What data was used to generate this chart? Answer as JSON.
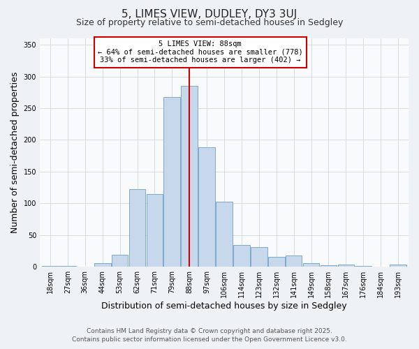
{
  "title": "5, LIMES VIEW, DUDLEY, DY3 3UJ",
  "subtitle": "Size of property relative to semi-detached houses in Sedgley",
  "xlabel": "Distribution of semi-detached houses by size in Sedgley",
  "ylabel": "Number of semi-detached properties",
  "categories": [
    "18sqm",
    "27sqm",
    "36sqm",
    "44sqm",
    "53sqm",
    "62sqm",
    "71sqm",
    "79sqm",
    "88sqm",
    "97sqm",
    "106sqm",
    "114sqm",
    "123sqm",
    "132sqm",
    "141sqm",
    "149sqm",
    "158sqm",
    "167sqm",
    "176sqm",
    "184sqm",
    "193sqm"
  ],
  "values": [
    1,
    1,
    0,
    6,
    19,
    122,
    115,
    268,
    285,
    188,
    103,
    35,
    31,
    16,
    18,
    6,
    3,
    4,
    1,
    0,
    4
  ],
  "bar_color": "#c8d8ec",
  "bar_edge_color": "#7aaac8",
  "vline_x": 8,
  "vline_color": "#cc0000",
  "annotation_title": "5 LIMES VIEW: 88sqm",
  "annotation_line1": "← 64% of semi-detached houses are smaller (778)",
  "annotation_line2": "33% of semi-detached houses are larger (402) →",
  "annotation_box_facecolor": "#ffffff",
  "annotation_box_edgecolor": "#cc0000",
  "ylim": [
    0,
    360
  ],
  "yticks": [
    0,
    50,
    100,
    150,
    200,
    250,
    300,
    350
  ],
  "footer_line1": "Contains HM Land Registry data © Crown copyright and database right 2025.",
  "footer_line2": "Contains public sector information licensed under the Open Government Licence v3.0.",
  "bg_color": "#eef2f7",
  "plot_bg_color": "#f8fafc",
  "grid_color": "#d0d8e0",
  "title_fontsize": 11,
  "subtitle_fontsize": 9,
  "label_fontsize": 9,
  "tick_fontsize": 7,
  "annotation_fontsize": 7.5,
  "footer_fontsize": 6.5
}
